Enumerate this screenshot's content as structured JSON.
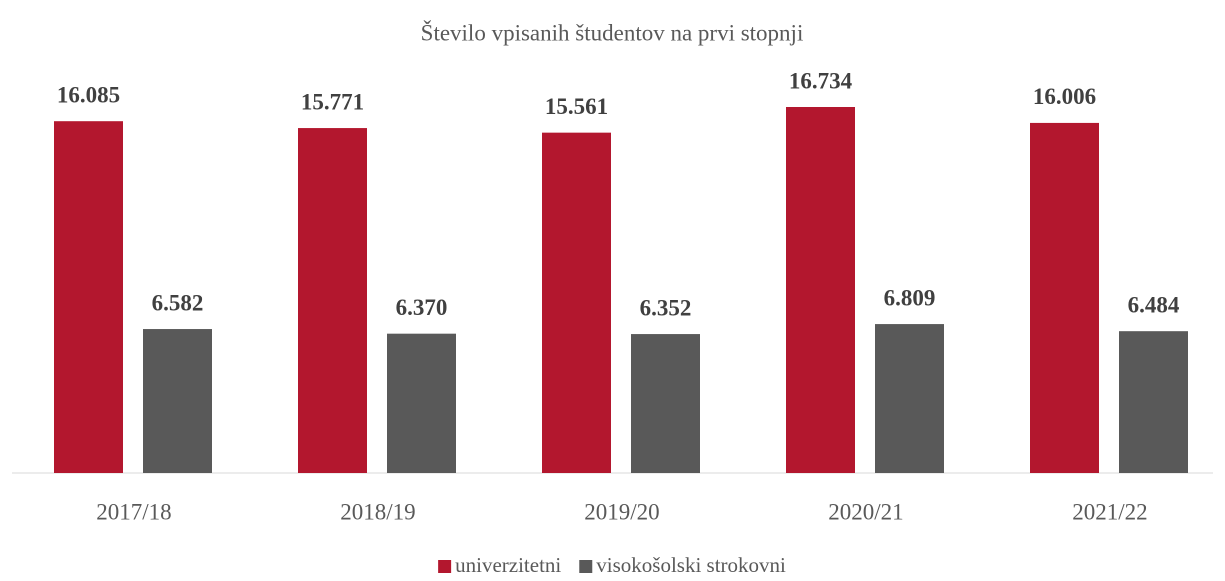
{
  "chart_data": {
    "type": "bar",
    "title": "Število vpisanih študentov na prvi stopnji",
    "categories": [
      "2017/18",
      "2018/19",
      "2019/20",
      "2020/21",
      "2021/22"
    ],
    "series": [
      {
        "name": "univerzitetni",
        "color": "#b3172e",
        "values": [
          16085,
          15771,
          15561,
          16734,
          16006
        ],
        "value_labels": [
          "16.085",
          "15.771",
          "15.561",
          "16.734",
          "16.006"
        ]
      },
      {
        "name": "visokošolski strokovni",
        "color": "#595959",
        "values": [
          6582,
          6370,
          6352,
          6809,
          6484
        ],
        "value_labels": [
          "6.582",
          "6.370",
          "6.352",
          "6.809",
          "6.484"
        ]
      }
    ],
    "legend": "bottom"
  }
}
